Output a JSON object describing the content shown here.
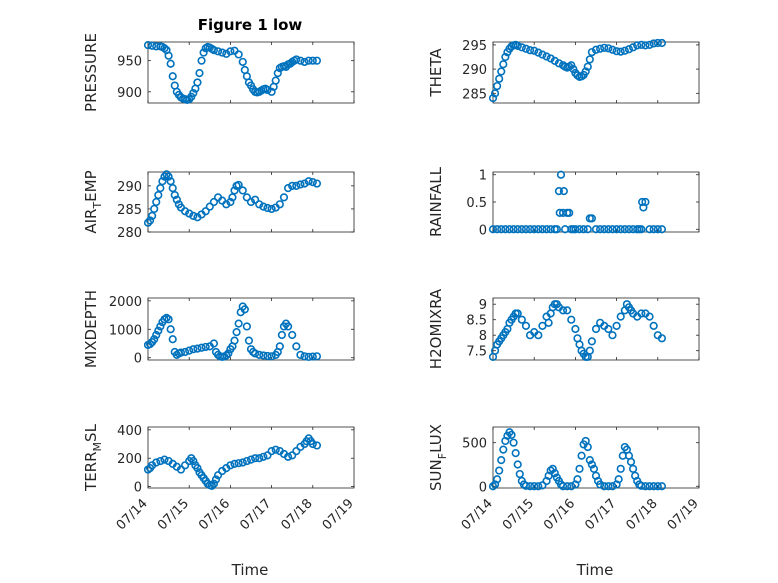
{
  "figure": {
    "title": "Figure 1 low",
    "xlabel": "Time",
    "xticks": [
      "07/14",
      "07/15",
      "07/16",
      "07/17",
      "07/18",
      "07/19"
    ],
    "xlim_days": [
      14,
      19
    ],
    "marker_color": "#0072bd",
    "grid": "major and minor"
  },
  "chart_data": [
    {
      "type": "scatter",
      "ylabel": "PRESSURE",
      "ylim": [
        882,
        980
      ],
      "yticks": [
        "900",
        "950"
      ],
      "x": [
        14.0,
        14.1,
        14.2,
        14.3,
        14.35,
        14.4,
        14.45,
        14.5,
        14.55,
        14.6,
        14.65,
        14.7,
        14.75,
        14.8,
        14.85,
        14.9,
        14.95,
        15.0,
        15.05,
        15.1,
        15.15,
        15.2,
        15.25,
        15.3,
        15.35,
        15.4,
        15.45,
        15.5,
        15.55,
        15.6,
        15.7,
        15.8,
        15.9,
        16.0,
        16.1,
        16.2,
        16.3,
        16.35,
        16.4,
        16.45,
        16.5,
        16.55,
        16.6,
        16.65,
        16.7,
        16.75,
        16.8,
        16.85,
        16.9,
        17.0,
        17.05,
        17.1,
        17.15,
        17.2,
        17.25,
        17.3,
        17.35,
        17.4,
        17.45,
        17.5,
        17.55,
        17.6,
        17.7,
        17.8,
        17.9,
        18.0,
        18.1
      ],
      "y": [
        975,
        974,
        973,
        973,
        972,
        970,
        967,
        958,
        945,
        925,
        910,
        900,
        895,
        891,
        889,
        888,
        887,
        888,
        892,
        898,
        905,
        915,
        930,
        950,
        963,
        970,
        972,
        971,
        969,
        967,
        965,
        963,
        961,
        965,
        966,
        960,
        948,
        935,
        925,
        915,
        910,
        904,
        900,
        899,
        900,
        902,
        904,
        905,
        903,
        900,
        908,
        918,
        930,
        938,
        940,
        941,
        940,
        944,
        945,
        948,
        950,
        952,
        950,
        948,
        950,
        950,
        950
      ]
    },
    {
      "type": "scatter",
      "ylabel": "THETA",
      "ylim": [
        283,
        295.6
      ],
      "yticks": [
        "285",
        "290",
        "295"
      ],
      "x": [
        14.0,
        14.05,
        14.1,
        14.15,
        14.2,
        14.25,
        14.3,
        14.35,
        14.4,
        14.45,
        14.5,
        14.55,
        14.6,
        14.7,
        14.8,
        14.9,
        15.0,
        15.1,
        15.2,
        15.3,
        15.4,
        15.5,
        15.6,
        15.7,
        15.75,
        15.8,
        15.85,
        15.9,
        15.95,
        16.0,
        16.05,
        16.1,
        16.15,
        16.2,
        16.25,
        16.3,
        16.35,
        16.4,
        16.5,
        16.6,
        16.7,
        16.8,
        16.9,
        17.0,
        17.1,
        17.2,
        17.3,
        17.4,
        17.5,
        17.6,
        17.7,
        17.8,
        17.9,
        18.0,
        18.1
      ],
      "y": [
        284,
        285,
        286.5,
        288,
        289.5,
        291,
        292.5,
        293.5,
        294.2,
        294.7,
        294.9,
        295,
        294.8,
        294.5,
        294.2,
        293.9,
        293.8,
        293.4,
        293,
        292.6,
        292.2,
        291.7,
        291.2,
        290.8,
        290.5,
        290.3,
        290.5,
        290.8,
        290,
        289.2,
        288.7,
        288.4,
        288.5,
        288.8,
        289.5,
        290.5,
        292,
        293.5,
        294,
        294.2,
        294.4,
        294.3,
        294,
        293.7,
        293.6,
        293.8,
        294.1,
        294.5,
        294.9,
        295,
        294.9,
        295,
        295.3,
        295.4,
        295.4
      ]
    },
    {
      "type": "scatter",
      "ylabel": "AIR_TEMP",
      "ylabel_main": "AIR",
      "ylabel_sub": "T",
      "ylabel_rest": "EMP",
      "ylim": [
        280,
        293
      ],
      "yticks": [
        "280",
        "285",
        "290"
      ],
      "x": [
        14.0,
        14.05,
        14.1,
        14.15,
        14.2,
        14.25,
        14.3,
        14.35,
        14.4,
        14.45,
        14.5,
        14.55,
        14.6,
        14.65,
        14.7,
        14.75,
        14.8,
        14.9,
        15.0,
        15.1,
        15.2,
        15.3,
        15.4,
        15.5,
        15.6,
        15.7,
        15.8,
        15.9,
        16.0,
        16.05,
        16.1,
        16.15,
        16.2,
        16.3,
        16.4,
        16.5,
        16.6,
        16.7,
        16.8,
        16.9,
        17.0,
        17.1,
        17.2,
        17.3,
        17.4,
        17.5,
        17.6,
        17.7,
        17.8,
        17.9,
        18.0,
        18.1
      ],
      "y": [
        282,
        282.5,
        283.5,
        285,
        286.5,
        288,
        289.5,
        291,
        292,
        292.5,
        292,
        291,
        289.5,
        288,
        287,
        286,
        285.3,
        284.5,
        284,
        283.5,
        283.2,
        283.8,
        284.5,
        285.5,
        286.5,
        287.5,
        286.8,
        286,
        286.5,
        287.5,
        289,
        290,
        290.2,
        289,
        287.5,
        286.5,
        287,
        286,
        285.5,
        285.2,
        285,
        285.3,
        286,
        287.5,
        289.5,
        290,
        290,
        290.3,
        290.5,
        291,
        290.8,
        290.5
      ]
    },
    {
      "type": "scatter",
      "ylabel": "RAINFALL",
      "ylim": [
        -0.05,
        1.05
      ],
      "yticks": [
        "0",
        "0.5",
        "1"
      ],
      "x": [
        14.0,
        14.1,
        14.2,
        14.3,
        14.4,
        14.5,
        14.6,
        14.7,
        14.8,
        14.9,
        15.0,
        15.1,
        15.2,
        15.3,
        15.4,
        15.5,
        15.55,
        15.6,
        15.62,
        15.65,
        15.7,
        15.72,
        15.75,
        15.8,
        15.85,
        15.9,
        15.95,
        16.0,
        16.1,
        16.2,
        16.3,
        16.35,
        16.4,
        16.5,
        16.6,
        16.7,
        16.8,
        16.9,
        17.0,
        17.1,
        17.2,
        17.3,
        17.4,
        17.5,
        17.55,
        17.6,
        17.62,
        17.65,
        17.7,
        17.8,
        17.9,
        18.0,
        18.1
      ],
      "y": [
        0,
        0,
        0,
        0,
        0,
        0,
        0,
        0,
        0,
        0,
        0,
        0,
        0,
        0,
        0,
        0,
        0,
        0.7,
        0.3,
        1.0,
        0.3,
        0.7,
        0,
        0.3,
        0.3,
        0,
        0,
        0,
        0,
        0,
        0,
        0.2,
        0.2,
        0,
        0,
        0,
        0,
        0,
        0,
        0,
        0,
        0,
        0,
        0,
        0,
        0,
        0.5,
        0.4,
        0.5,
        0,
        0,
        0,
        0
      ]
    },
    {
      "type": "scatter",
      "ylabel": "MIXDEPTH",
      "ylim": [
        -80,
        2100
      ],
      "yticks": [
        "0",
        "1000",
        "2000"
      ],
      "x": [
        14.0,
        14.05,
        14.1,
        14.15,
        14.2,
        14.25,
        14.3,
        14.35,
        14.4,
        14.45,
        14.5,
        14.55,
        14.6,
        14.65,
        14.7,
        14.75,
        14.8,
        14.9,
        15.0,
        15.1,
        15.2,
        15.3,
        15.4,
        15.5,
        15.6,
        15.65,
        15.7,
        15.75,
        15.8,
        15.85,
        15.9,
        15.95,
        16.0,
        16.05,
        16.1,
        16.15,
        16.2,
        16.25,
        16.3,
        16.35,
        16.4,
        16.45,
        16.5,
        16.55,
        16.6,
        16.7,
        16.8,
        16.9,
        17.0,
        17.1,
        17.15,
        17.2,
        17.25,
        17.3,
        17.35,
        17.4,
        17.5,
        17.6,
        17.7,
        17.8,
        17.9,
        18.0,
        18.1
      ],
      "y": [
        450,
        480,
        550,
        650,
        800,
        950,
        1100,
        1250,
        1350,
        1400,
        1350,
        1000,
        650,
        200,
        100,
        150,
        180,
        200,
        250,
        300,
        320,
        350,
        380,
        400,
        500,
        200,
        100,
        50,
        30,
        40,
        80,
        150,
        300,
        400,
        600,
        900,
        1200,
        1600,
        1800,
        1700,
        1100,
        600,
        300,
        200,
        150,
        100,
        80,
        60,
        50,
        100,
        200,
        400,
        800,
        1100,
        1200,
        1100,
        800,
        400,
        100,
        50,
        30,
        40,
        50
      ]
    },
    {
      "type": "scatter",
      "ylabel": "H2OMIXRA",
      "ylim": [
        7.2,
        9.2
      ],
      "yticks": [
        "7.5",
        "8",
        "8.5",
        "9"
      ],
      "x": [
        14.0,
        14.05,
        14.1,
        14.15,
        14.2,
        14.25,
        14.3,
        14.35,
        14.4,
        14.45,
        14.5,
        14.55,
        14.6,
        14.7,
        14.8,
        14.9,
        15.0,
        15.1,
        15.2,
        15.3,
        15.35,
        15.4,
        15.45,
        15.5,
        15.55,
        15.6,
        15.7,
        15.8,
        15.9,
        16.0,
        16.05,
        16.1,
        16.15,
        16.2,
        16.25,
        16.3,
        16.35,
        16.4,
        16.5,
        16.6,
        16.7,
        16.8,
        16.9,
        17.0,
        17.1,
        17.2,
        17.25,
        17.3,
        17.35,
        17.4,
        17.5,
        17.6,
        17.7,
        17.8,
        17.9,
        18.0,
        18.1
      ],
      "y": [
        7.3,
        7.5,
        7.7,
        7.8,
        7.9,
        8.0,
        8.1,
        8.2,
        8.4,
        8.5,
        8.6,
        8.7,
        8.7,
        8.5,
        8.3,
        8.0,
        8.1,
        8.0,
        8.3,
        8.6,
        8.4,
        8.7,
        8.9,
        9.0,
        9.0,
        8.9,
        8.8,
        8.8,
        8.5,
        8.2,
        7.9,
        7.7,
        7.5,
        7.4,
        7.3,
        7.3,
        7.5,
        7.8,
        8.2,
        8.4,
        8.3,
        8.2,
        8.0,
        8.3,
        8.6,
        8.8,
        9.0,
        8.9,
        8.8,
        8.7,
        8.6,
        8.7,
        8.7,
        8.6,
        8.3,
        8.0,
        7.9
      ]
    },
    {
      "type": "scatter",
      "ylabel": "TERR_MSL",
      "ylabel_main": "TERR",
      "ylabel_sub": "M",
      "ylabel_rest": "SL",
      "ylim": [
        -10,
        420
      ],
      "yticks": [
        "0",
        "200",
        "400"
      ],
      "x": [
        14.0,
        14.05,
        14.1,
        14.2,
        14.3,
        14.4,
        14.5,
        14.6,
        14.7,
        14.8,
        14.9,
        15.0,
        15.05,
        15.1,
        15.15,
        15.2,
        15.25,
        15.3,
        15.35,
        15.4,
        15.45,
        15.5,
        15.55,
        15.6,
        15.65,
        15.7,
        15.8,
        15.9,
        16.0,
        16.1,
        16.2,
        16.3,
        16.4,
        16.5,
        16.6,
        16.7,
        16.8,
        16.9,
        17.0,
        17.1,
        17.2,
        17.3,
        17.4,
        17.5,
        17.6,
        17.7,
        17.8,
        17.85,
        17.9,
        17.95,
        18.0,
        18.1
      ],
      "y": [
        120,
        130,
        150,
        170,
        180,
        190,
        180,
        160,
        140,
        120,
        150,
        180,
        200,
        180,
        150,
        130,
        100,
        80,
        60,
        40,
        20,
        10,
        5,
        20,
        50,
        80,
        110,
        130,
        150,
        160,
        165,
        170,
        180,
        190,
        200,
        200,
        210,
        220,
        250,
        260,
        250,
        230,
        210,
        220,
        250,
        280,
        300,
        320,
        340,
        320,
        300,
        290
      ]
    },
    {
      "type": "scatter",
      "ylabel": "SUN_FLUX",
      "ylabel_main": "SUN",
      "ylabel_sub": "F",
      "ylabel_rest": "LUX",
      "ylim": [
        -20,
        680
      ],
      "yticks": [
        "0",
        "500"
      ],
      "x": [
        14.0,
        14.05,
        14.1,
        14.15,
        14.2,
        14.25,
        14.3,
        14.35,
        14.4,
        14.45,
        14.5,
        14.55,
        14.6,
        14.65,
        14.7,
        14.75,
        14.8,
        14.9,
        15.0,
        15.1,
        15.2,
        15.3,
        15.35,
        15.4,
        15.45,
        15.5,
        15.55,
        15.6,
        15.65,
        15.7,
        15.8,
        15.9,
        16.0,
        16.05,
        16.1,
        16.15,
        16.2,
        16.25,
        16.3,
        16.35,
        16.4,
        16.45,
        16.5,
        16.55,
        16.6,
        16.7,
        16.8,
        16.9,
        17.0,
        17.05,
        17.1,
        17.15,
        17.2,
        17.25,
        17.3,
        17.35,
        17.4,
        17.45,
        17.5,
        17.55,
        17.6,
        17.7,
        17.8,
        17.9,
        18.0,
        18.1
      ],
      "y": [
        0,
        20,
        80,
        180,
        300,
        420,
        520,
        580,
        620,
        590,
        500,
        380,
        250,
        140,
        60,
        20,
        5,
        0,
        0,
        0,
        10,
        60,
        120,
        180,
        200,
        150,
        100,
        60,
        20,
        0,
        0,
        0,
        20,
        80,
        200,
        350,
        480,
        520,
        450,
        300,
        250,
        200,
        120,
        60,
        20,
        0,
        0,
        0,
        20,
        80,
        200,
        350,
        450,
        420,
        350,
        280,
        200,
        120,
        60,
        20,
        5,
        0,
        0,
        0,
        0,
        0
      ]
    }
  ]
}
